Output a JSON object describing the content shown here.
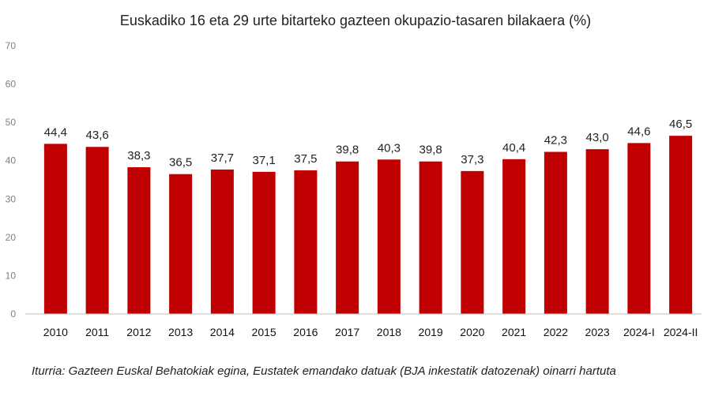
{
  "chart_data": {
    "type": "bar",
    "title": "Euskadiko 16 eta 29 urte bitarteko gazteen okupazio-tasaren bilakaera (%)",
    "xlabel": "",
    "ylabel": "",
    "ylim": [
      0,
      70
    ],
    "yticks": [
      0,
      10,
      20,
      30,
      40,
      50,
      60,
      70
    ],
    "categories": [
      "2010",
      "2011",
      "2012",
      "2013",
      "2014",
      "2015",
      "2016",
      "2017",
      "2018",
      "2019",
      "2020",
      "2021",
      "2022",
      "2023",
      "2024-I",
      "2024-II"
    ],
    "values": [
      44.4,
      43.6,
      38.3,
      36.5,
      37.7,
      37.1,
      37.5,
      39.8,
      40.3,
      39.8,
      37.3,
      40.4,
      42.3,
      43.0,
      44.6,
      46.5
    ],
    "data_labels": [
      "44,4",
      "43,6",
      "38,3",
      "36,5",
      "37,7",
      "37,1",
      "37,5",
      "39,8",
      "40,3",
      "39,8",
      "37,3",
      "40,4",
      "42,3",
      "43,0",
      "44,6",
      "46,5"
    ],
    "bar_color": "#c00000",
    "grid": false,
    "legend": "none"
  },
  "source_note": "Iturria: Gazteen Euskal Behatokiak egina, Eustatek emandako datuak (BJA inkestatik datozenak) oinarri hartuta"
}
